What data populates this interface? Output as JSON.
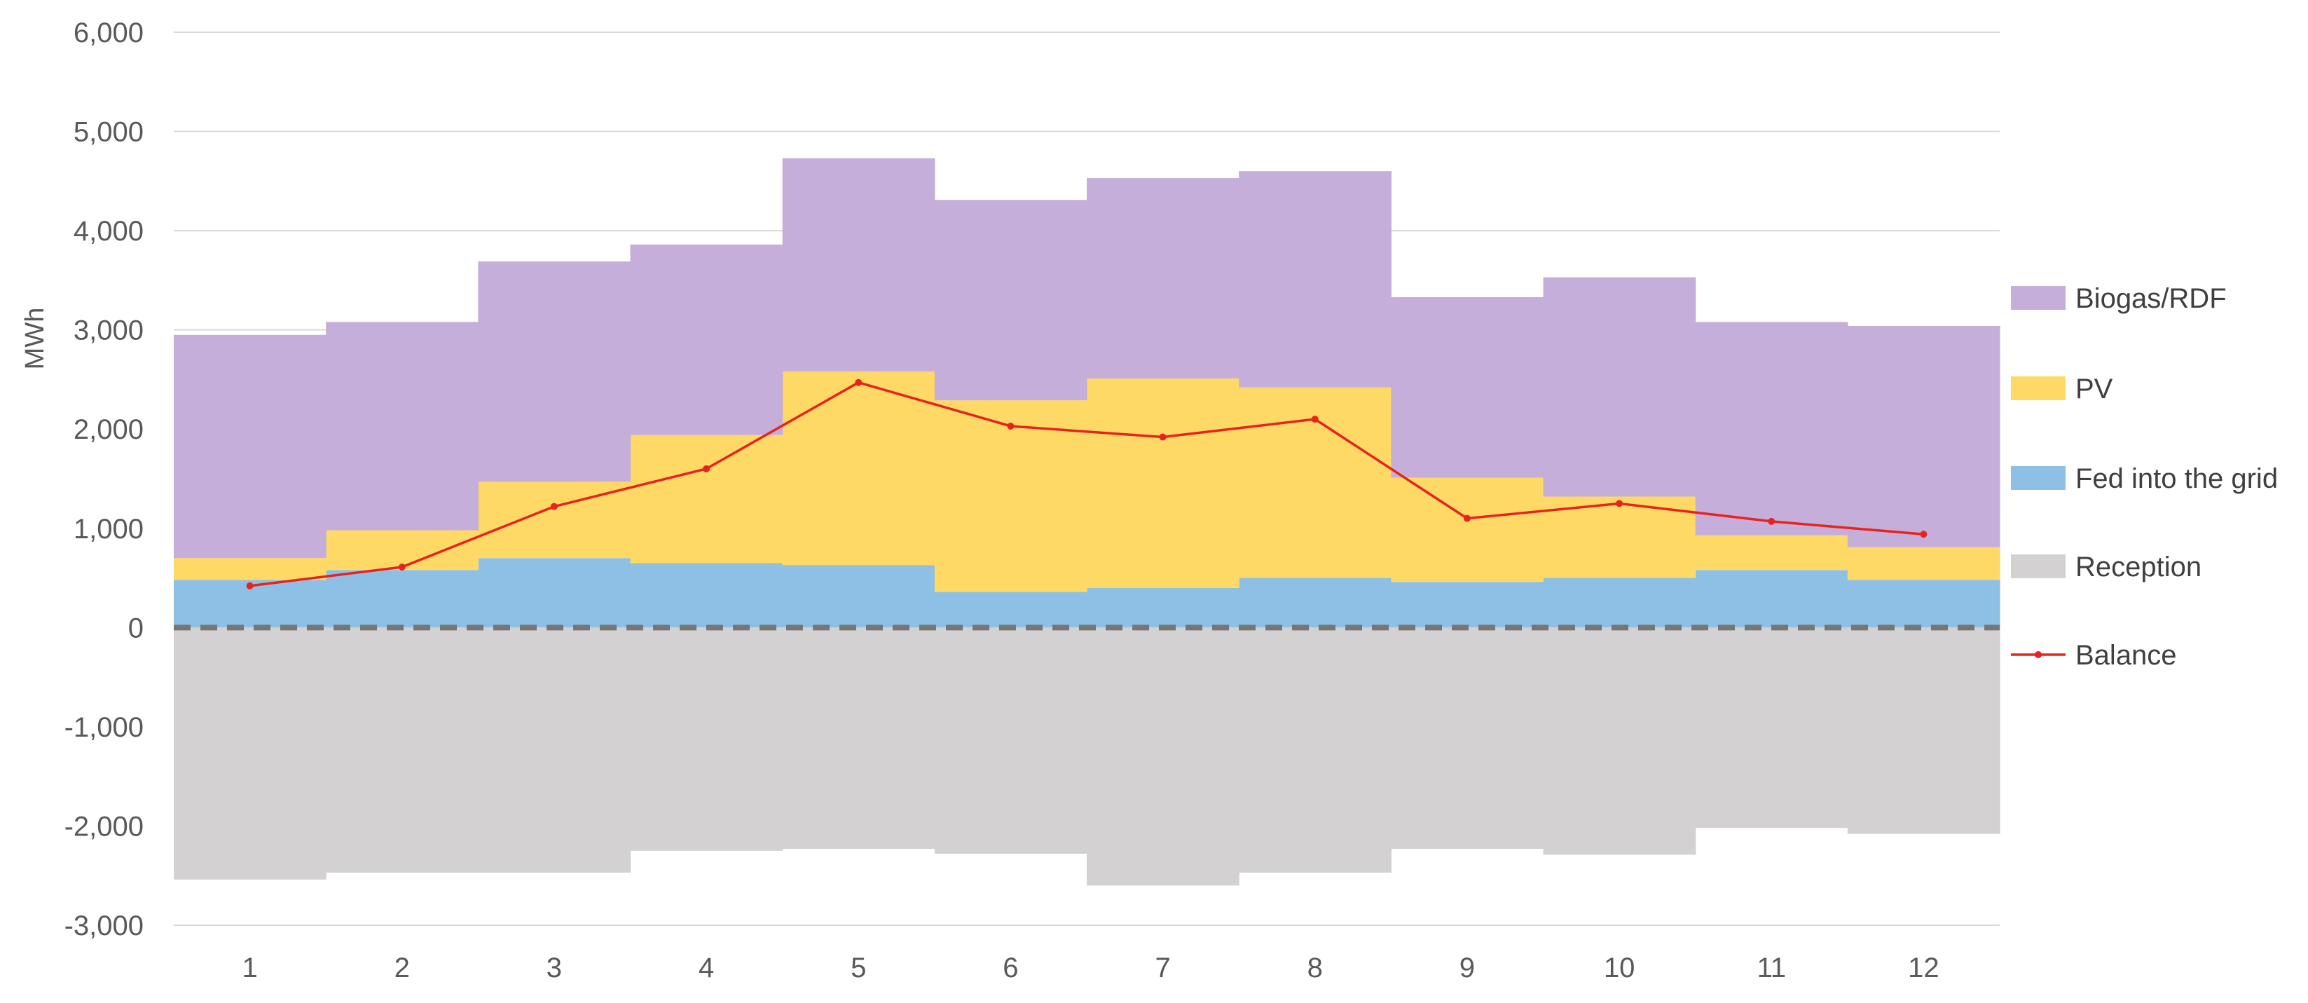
{
  "chart_data": {
    "type": "area",
    "subtype": "stacked-step-area-with-line",
    "title": "",
    "xlabel": "",
    "ylabel": "MWh",
    "x": [
      1,
      2,
      3,
      4,
      5,
      6,
      7,
      8,
      9,
      10,
      11,
      12
    ],
    "ylim": [
      -3000,
      6000
    ],
    "y_ticks": [
      -3000,
      -2000,
      -1000,
      0,
      1000,
      2000,
      3000,
      4000,
      5000,
      6000
    ],
    "y_tick_labels": [
      "-3,000",
      "-2,000",
      "-1,000",
      "0",
      "1,000",
      "2,000",
      "3,000",
      "4,000",
      "5,000",
      "6,000"
    ],
    "grid": true,
    "zero_line": "dashed",
    "legend_position": "right",
    "series": [
      {
        "name": "Biogas/RDF",
        "kind": "stacked-area",
        "color": "#C5AED9",
        "values": [
          2250,
          2100,
          2220,
          1920,
          2150,
          2020,
          2020,
          2180,
          1820,
          2210,
          2150,
          2230
        ]
      },
      {
        "name": "PV",
        "kind": "stacked-area",
        "color": "#FFD966",
        "values": [
          220,
          400,
          770,
          1290,
          1950,
          1930,
          2110,
          1920,
          1050,
          820,
          350,
          330
        ]
      },
      {
        "name": "Fed into the grid",
        "kind": "stacked-area",
        "color": "#8DC0E4",
        "values": [
          480,
          580,
          700,
          650,
          630,
          360,
          400,
          500,
          460,
          500,
          580,
          480
        ]
      },
      {
        "name": "Reception",
        "kind": "area-negative",
        "color": "#D3D1D2",
        "values": [
          -2540,
          -2470,
          -2470,
          -2250,
          -2230,
          -2280,
          -2600,
          -2470,
          -2230,
          -2290,
          -2020,
          -2080
        ]
      },
      {
        "name": "Balance",
        "kind": "line",
        "color": "#E8231E",
        "values": [
          420,
          610,
          1220,
          1600,
          2470,
          2030,
          1920,
          2100,
          1100,
          1250,
          1070,
          940
        ]
      }
    ]
  }
}
